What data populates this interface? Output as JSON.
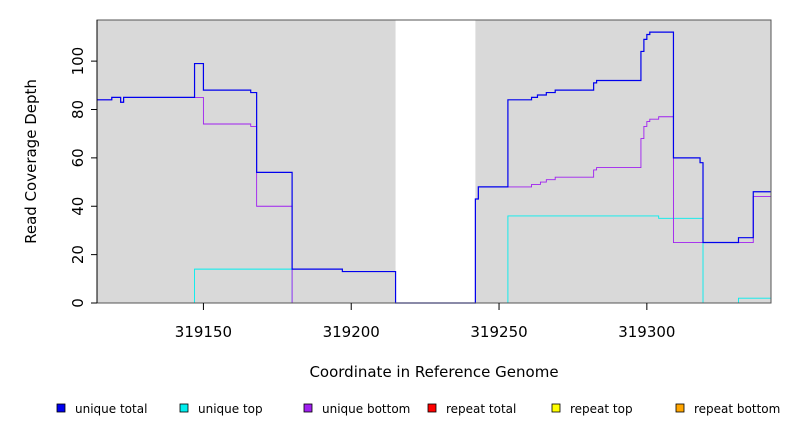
{
  "chart_data": {
    "type": "line",
    "title": "",
    "xlabel": "Coordinate in Reference Genome",
    "ylabel": "Read Coverage Depth",
    "xlim": [
      319114,
      319342
    ],
    "ylim": [
      0,
      117
    ],
    "x_ticks": [
      319150,
      319200,
      319250,
      319300
    ],
    "y_ticks": [
      0,
      20,
      40,
      60,
      80,
      100
    ],
    "grid": false,
    "legend_position": "bottom",
    "shaded_regions": [
      [
        319114,
        319215
      ],
      [
        319242,
        319342
      ]
    ],
    "series": [
      {
        "name": "unique total",
        "color": "#0000ee",
        "points": [
          [
            319114,
            84
          ],
          [
            319119,
            85
          ],
          [
            319122,
            83
          ],
          [
            319123,
            85
          ],
          [
            319147,
            99
          ],
          [
            319150,
            88
          ],
          [
            319166,
            87
          ],
          [
            319168,
            54
          ],
          [
            319180,
            14
          ],
          [
            319197,
            13
          ],
          [
            319215,
            0
          ],
          [
            319242,
            43
          ],
          [
            319243,
            48
          ],
          [
            319253,
            84
          ],
          [
            319261,
            85
          ],
          [
            319263,
            86
          ],
          [
            319266,
            87
          ],
          [
            319269,
            88
          ],
          [
            319282,
            91
          ],
          [
            319283,
            92
          ],
          [
            319298,
            104
          ],
          [
            319299,
            109
          ],
          [
            319300,
            111
          ],
          [
            319301,
            112
          ],
          [
            319309,
            60
          ],
          [
            319318,
            58
          ],
          [
            319319,
            25
          ],
          [
            319331,
            27
          ],
          [
            319336,
            46
          ],
          [
            319342,
            46
          ]
        ]
      },
      {
        "name": "unique top",
        "color": "#00eeee",
        "points": [
          [
            319114,
            0
          ],
          [
            319147,
            14
          ],
          [
            319180,
            14
          ],
          [
            319180,
            0
          ],
          [
            319253,
            36
          ],
          [
            319304,
            35
          ],
          [
            319319,
            0
          ],
          [
            319331,
            2
          ],
          [
            319342,
            2
          ]
        ]
      },
      {
        "name": "unique bottom",
        "color": "#a020f0",
        "points": [
          [
            319114,
            84
          ],
          [
            319119,
            85
          ],
          [
            319122,
            83
          ],
          [
            319123,
            85
          ],
          [
            319150,
            74
          ],
          [
            319166,
            73
          ],
          [
            319168,
            40
          ],
          [
            319180,
            0
          ],
          [
            319242,
            43
          ],
          [
            319243,
            48
          ],
          [
            319261,
            49
          ],
          [
            319264,
            50
          ],
          [
            319266,
            51
          ],
          [
            319269,
            52
          ],
          [
            319282,
            55
          ],
          [
            319283,
            56
          ],
          [
            319298,
            68
          ],
          [
            319299,
            73
          ],
          [
            319300,
            75
          ],
          [
            319301,
            76
          ],
          [
            319304,
            77
          ],
          [
            319309,
            25
          ],
          [
            319336,
            44
          ],
          [
            319342,
            44
          ]
        ]
      },
      {
        "name": "repeat total",
        "color": "#ff0000",
        "points": [
          [
            319114,
            0
          ],
          [
            319342,
            0
          ]
        ]
      },
      {
        "name": "repeat top",
        "color": "#ffff00",
        "points": [
          [
            319114,
            0
          ],
          [
            319342,
            0
          ]
        ]
      },
      {
        "name": "repeat bottom",
        "color": "#ffa500",
        "points": [
          [
            319114,
            0
          ],
          [
            319342,
            0
          ]
        ]
      }
    ]
  }
}
